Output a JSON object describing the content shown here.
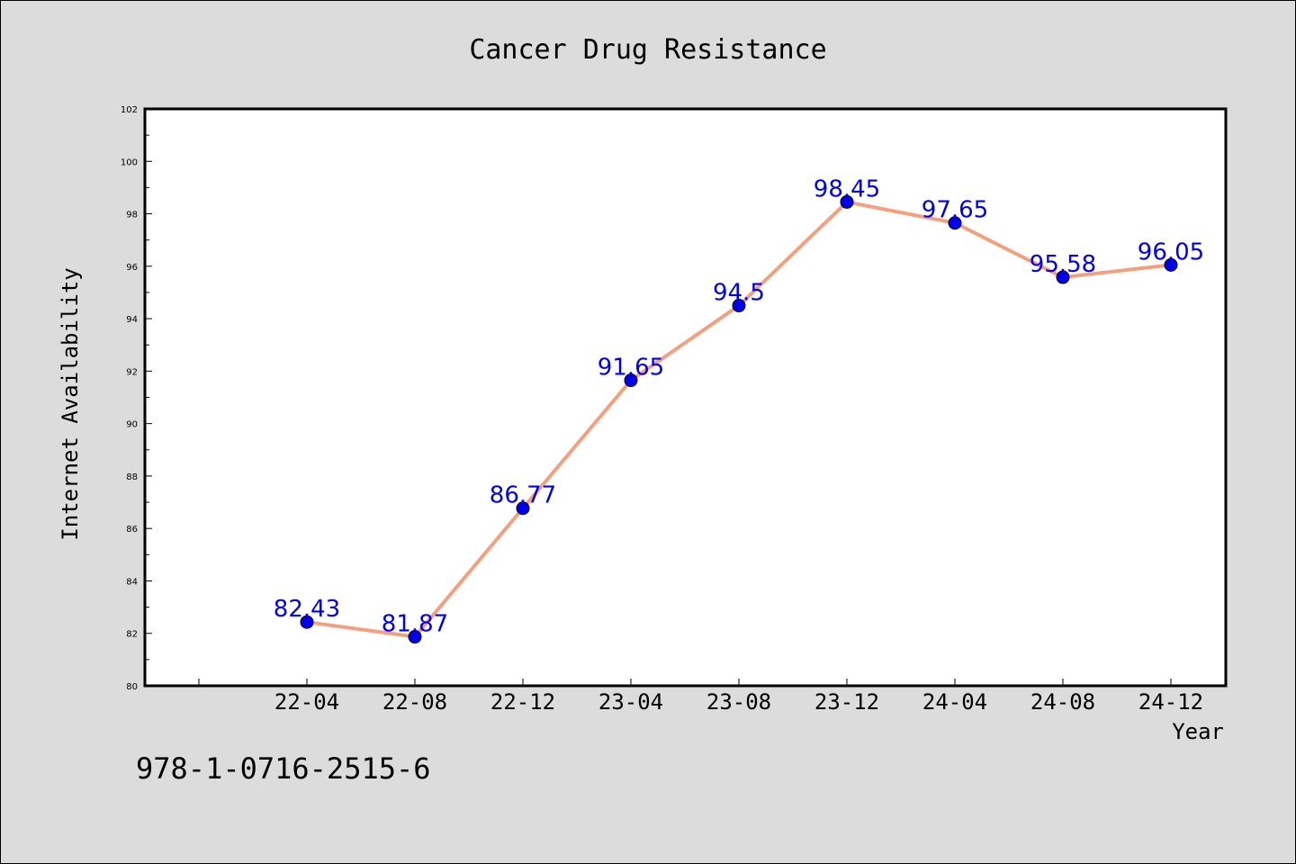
{
  "chart_data": {
    "type": "line",
    "title": "Cancer Drug Resistance",
    "xlabel": "Year",
    "ylabel": "Internet Availability",
    "categories": [
      "22-04",
      "22-08",
      "22-12",
      "23-04",
      "23-08",
      "23-12",
      "24-04",
      "24-08",
      "24-12"
    ],
    "series": [
      {
        "values": [
          82.43,
          81.87,
          86.77,
          91.65,
          94.5,
          98.45,
          97.65,
          95.58,
          96.05
        ],
        "line_color": "#f4a07e",
        "marker_color": "#0000ee"
      }
    ],
    "data_labels": [
      "82.43",
      "81.87",
      "86.77",
      "91.65",
      "94.5",
      "98.45",
      "97.65",
      "95.58",
      "96.05"
    ],
    "data_label_color": "#0000ee",
    "ylim": [
      80,
      102
    ],
    "yticks": [
      "80",
      "82",
      "84",
      "86",
      "88",
      "90",
      "92",
      "94",
      "96",
      "98",
      "100",
      "102"
    ],
    "grid": false,
    "legend": "none"
  },
  "footer": {
    "text": "978-1-0716-2515-6"
  },
  "colors": {
    "background": "#dcdcdc",
    "plot_background": "#ffffff"
  }
}
